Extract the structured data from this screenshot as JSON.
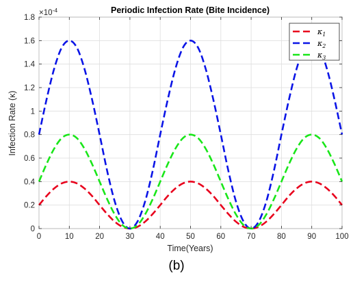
{
  "caption": "(b)",
  "chart_data": {
    "type": "line",
    "title": "Periodic Infection Rate (Bite Incidence)",
    "xlabel": "Time(Years)",
    "ylabel": "Infection Rate (κ)",
    "exponent_label": "×10",
    "exponent_power": "-4",
    "xlim": [
      0,
      100
    ],
    "ylim": [
      0,
      1.8
    ],
    "xticks": [
      0,
      10,
      20,
      30,
      40,
      50,
      60,
      70,
      80,
      90,
      100
    ],
    "yticks": [
      0,
      0.2,
      0.4,
      0.6,
      0.8,
      1,
      1.2,
      1.4,
      1.6,
      1.8
    ],
    "ytick_labels": [
      "0",
      "0.2",
      "0.4",
      "0.6",
      "0.8",
      "1",
      "1.2",
      "1.4",
      "1.6",
      "1.8"
    ],
    "grid": true,
    "legend_position": "top-right",
    "x": [
      0,
      2.5,
      5,
      7.5,
      10,
      12.5,
      15,
      17.5,
      20,
      22.5,
      25,
      27.5,
      30,
      32.5,
      35,
      37.5,
      40,
      42.5,
      45,
      47.5,
      50,
      52.5,
      55,
      57.5,
      60,
      62.5,
      65,
      67.5,
      70,
      72.5,
      75,
      77.5,
      80,
      82.5,
      85,
      87.5,
      90,
      92.5,
      95,
      97.5,
      100
    ],
    "series": [
      {
        "name": "κ1",
        "symbol": "κ",
        "subscript": "1",
        "color": "#e8001c",
        "values": [
          0.2,
          0.2776,
          0.3414,
          0.3848,
          0.4,
          0.3848,
          0.3414,
          0.2776,
          0.2,
          0.1236,
          0.0586,
          0.0152,
          0.0,
          0.0152,
          0.0586,
          0.1236,
          0.2,
          0.2776,
          0.3414,
          0.3848,
          0.4,
          0.3848,
          0.3414,
          0.2776,
          0.2,
          0.1236,
          0.0586,
          0.0152,
          0.0,
          0.0152,
          0.0586,
          0.1236,
          0.2,
          0.2776,
          0.3414,
          0.3848,
          0.4,
          0.3848,
          0.3414,
          0.2776,
          0.2
        ]
      },
      {
        "name": "κ2",
        "symbol": "κ",
        "subscript": "2",
        "color": "#0a14e6",
        "values": [
          0.8,
          1.1,
          1.36,
          1.54,
          1.6,
          1.54,
          1.36,
          1.1,
          0.8,
          0.49,
          0.23,
          0.06,
          0.0,
          0.06,
          0.23,
          0.49,
          0.8,
          1.1,
          1.36,
          1.54,
          1.6,
          1.54,
          1.36,
          1.1,
          0.8,
          0.49,
          0.23,
          0.06,
          0.0,
          0.06,
          0.23,
          0.49,
          0.8,
          1.1,
          1.36,
          1.54,
          1.6,
          1.54,
          1.36,
          1.1,
          0.8
        ]
      },
      {
        "name": "κ3",
        "symbol": "κ",
        "subscript": "3",
        "color": "#19e619",
        "values": [
          0.4,
          0.55,
          0.68,
          0.77,
          0.8,
          0.77,
          0.68,
          0.55,
          0.4,
          0.25,
          0.12,
          0.03,
          0.0,
          0.03,
          0.12,
          0.25,
          0.4,
          0.55,
          0.68,
          0.77,
          0.8,
          0.77,
          0.68,
          0.55,
          0.4,
          0.25,
          0.12,
          0.03,
          0.0,
          0.03,
          0.12,
          0.25,
          0.4,
          0.55,
          0.68,
          0.77,
          0.8,
          0.77,
          0.68,
          0.55,
          0.4
        ]
      }
    ]
  }
}
